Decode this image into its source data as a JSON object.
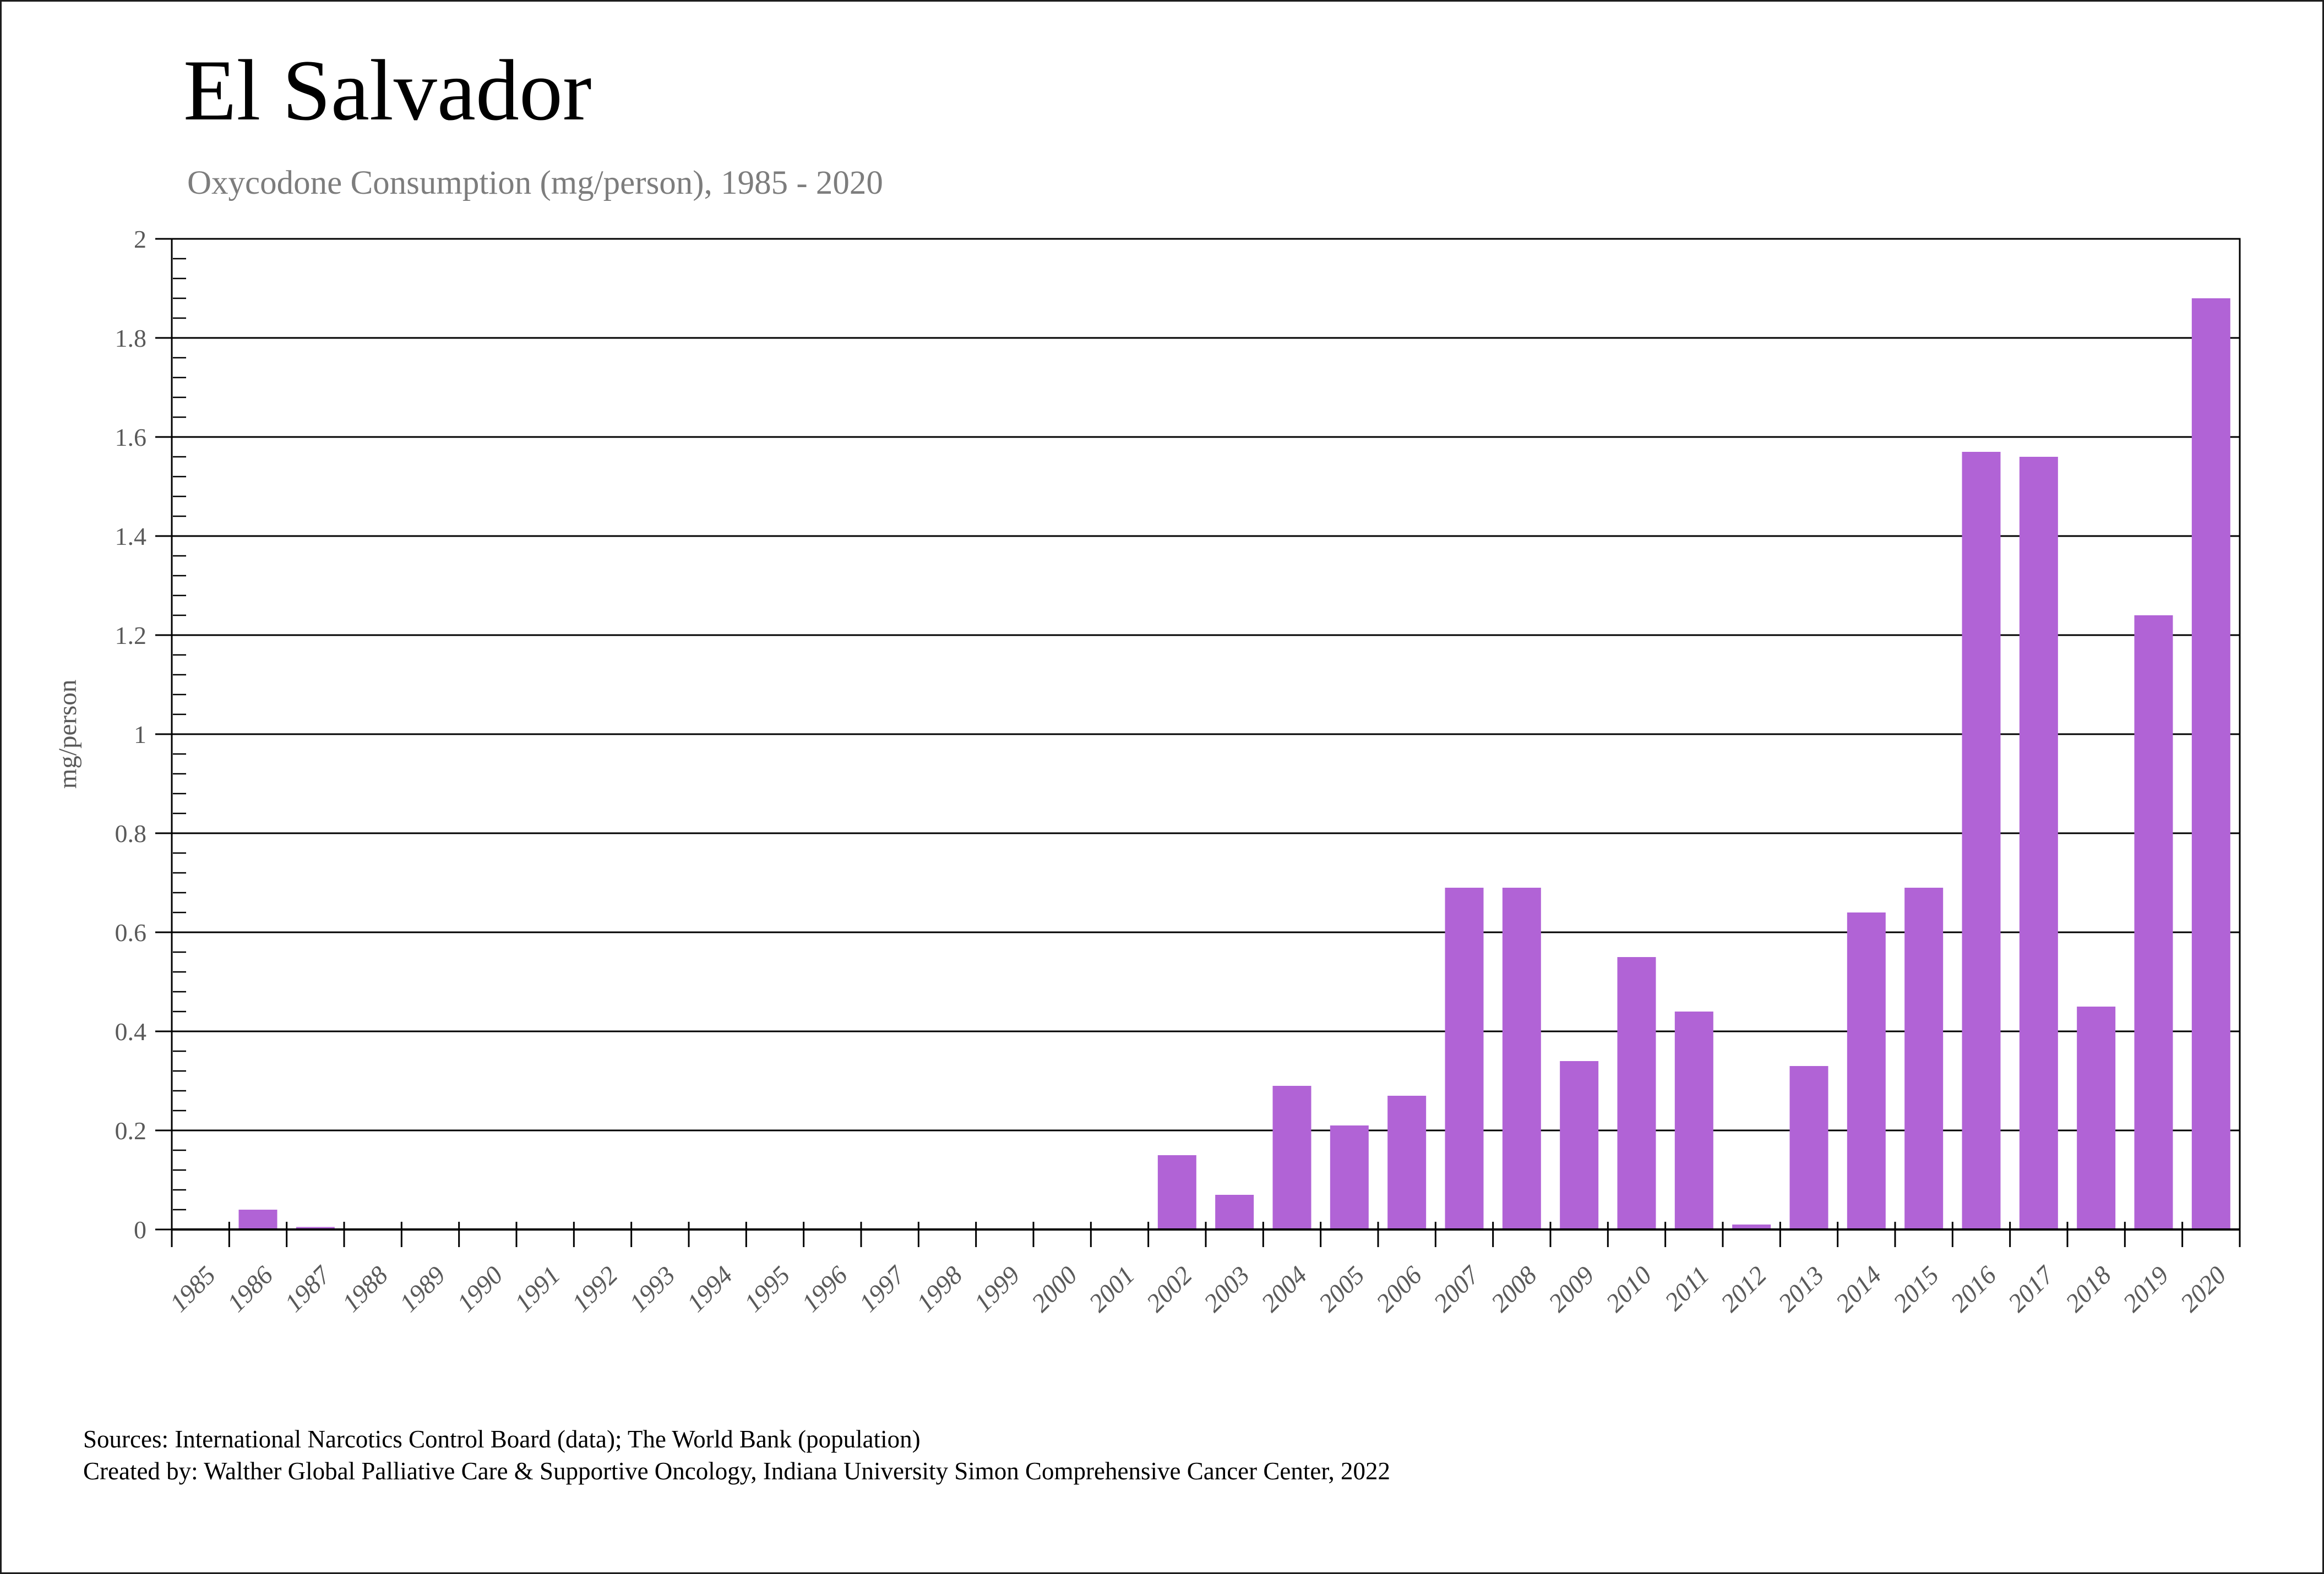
{
  "page": {
    "title": "El Salvador",
    "subtitle": "Oxycodone Consumption (mg/person), 1985 - 2020"
  },
  "footer": {
    "line1": "Sources: International Narcotics Control Board (data); The World Bank (population)",
    "line2": "Created by: Walther Global Palliative Care & Supportive Oncology, Indiana University Simon Comprehensive Cancer Center, 2022"
  },
  "colors": {
    "bar": "#b163d6",
    "axis": "#000000",
    "grid": "#000000",
    "tick_label": "#595959",
    "axis_title": "#595959",
    "subtitle": "#7d7d7d",
    "title": "#000000"
  },
  "chart_data": {
    "type": "bar",
    "title": "El Salvador",
    "subtitle": "Oxycodone Consumption (mg/person), 1985 - 2020",
    "xlabel": "",
    "ylabel": "mg/person",
    "ylim": [
      0,
      2
    ],
    "ytick_major": 0.2,
    "ytick_minor": 0.04,
    "grid": "horizontal-major",
    "legend": "none",
    "categories": [
      "1985",
      "1986",
      "1987",
      "1988",
      "1989",
      "1990",
      "1991",
      "1992",
      "1993",
      "1994",
      "1995",
      "1996",
      "1997",
      "1998",
      "1999",
      "2000",
      "2001",
      "2002",
      "2003",
      "2004",
      "2005",
      "2006",
      "2007",
      "2008",
      "2009",
      "2010",
      "2011",
      "2012",
      "2013",
      "2014",
      "2015",
      "2016",
      "2017",
      "2018",
      "2019",
      "2020"
    ],
    "values": [
      0,
      0.04,
      0.005,
      0,
      0,
      0,
      0,
      0,
      0,
      0,
      0,
      0,
      0,
      0,
      0,
      0,
      0,
      0.15,
      0.07,
      0.29,
      0.21,
      0.27,
      0.69,
      0.69,
      0.34,
      0.55,
      0.44,
      0.01,
      0.33,
      0.64,
      0.69,
      1.57,
      1.56,
      0.45,
      1.24,
      1.88
    ]
  }
}
